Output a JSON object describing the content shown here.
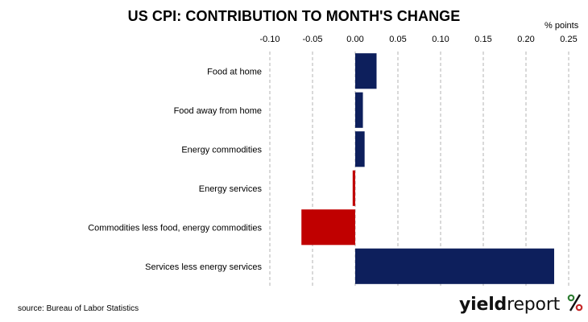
{
  "chart_data": {
    "type": "bar",
    "orientation": "horizontal",
    "title": "US CPI: CONTRIBUTION TO MONTH'S CHANGE",
    "unit_label": "% points",
    "categories": [
      "Food at home",
      "Food away from home",
      "Energy commodities",
      "Energy services",
      "Commodities less food, energy commodities",
      "Services less energy services"
    ],
    "values": [
      0.025,
      0.009,
      0.011,
      -0.003,
      -0.063,
      0.233
    ],
    "bar_colors": [
      "#0d1f5c",
      "#0d1f5c",
      "#0d1f5c",
      "#c00000",
      "#c00000",
      "#0d1f5c"
    ],
    "xlim": [
      -0.1,
      0.25
    ],
    "x_ticks": [
      -0.1,
      -0.05,
      0.0,
      0.05,
      0.1,
      0.15,
      0.2,
      0.25
    ],
    "x_tick_labels": [
      "-0.10",
      "-0.05",
      "0.00",
      "0.05",
      "0.10",
      "0.15",
      "0.20",
      "0.25"
    ],
    "xaxis_position": "top",
    "grid": "vertical dashed",
    "legend": "none"
  },
  "footer": {
    "source": "source: Bureau of Labor Statistics",
    "logo_text_bold": "yield",
    "logo_text_regular": "report",
    "logo_symbol": "%"
  },
  "colors": {
    "positive": "#0d1f5c",
    "negative": "#c00000",
    "logo_green": "#2e7d32",
    "logo_red": "#c62828"
  }
}
